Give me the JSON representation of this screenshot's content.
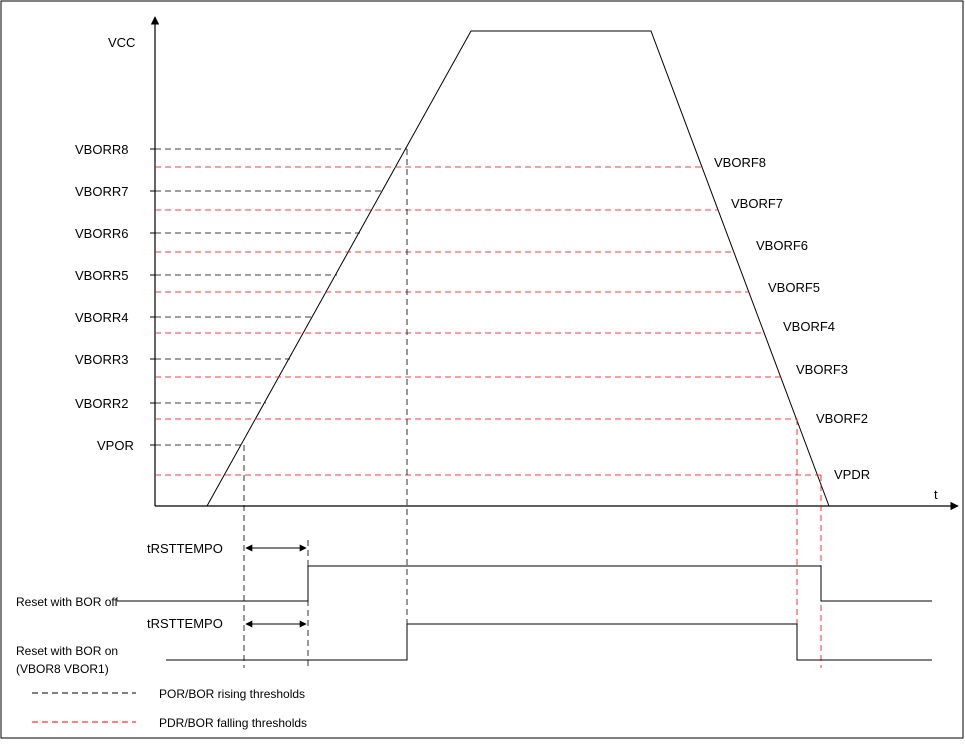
{
  "axis": {
    "y_label": "VCC",
    "x_label": "t"
  },
  "rising_thresholds": [
    {
      "label": "VBORR8"
    },
    {
      "label": "VBORR7"
    },
    {
      "label": "VBORR6"
    },
    {
      "label": "VBORR5"
    },
    {
      "label": "VBORR4"
    },
    {
      "label": "VBORR3"
    },
    {
      "label": "VBORR2"
    },
    {
      "label": "VPOR"
    }
  ],
  "falling_thresholds": [
    {
      "label": "VBORF8"
    },
    {
      "label": "VBORF7"
    },
    {
      "label": "VBORF6"
    },
    {
      "label": "VBORF5"
    },
    {
      "label": "VBORF4"
    },
    {
      "label": "VBORF3"
    },
    {
      "label": "VBORF2"
    },
    {
      "label": "VPDR"
    }
  ],
  "timing": {
    "delay_label_1": "tRSTTEMPO",
    "delay_label_2": "tRSTTEMPO",
    "signal_1": "Reset with BOR off",
    "signal_2_line1": "Reset with BOR on",
    "signal_2_line2": "(VBOR8 VBOR1)"
  },
  "legend": {
    "rising": "POR/BOR rising thresholds",
    "falling": "PDR/BOR falling thresholds"
  },
  "colors": {
    "rising": "#000000",
    "falling": "#ff0000",
    "waveform": "#000000"
  }
}
